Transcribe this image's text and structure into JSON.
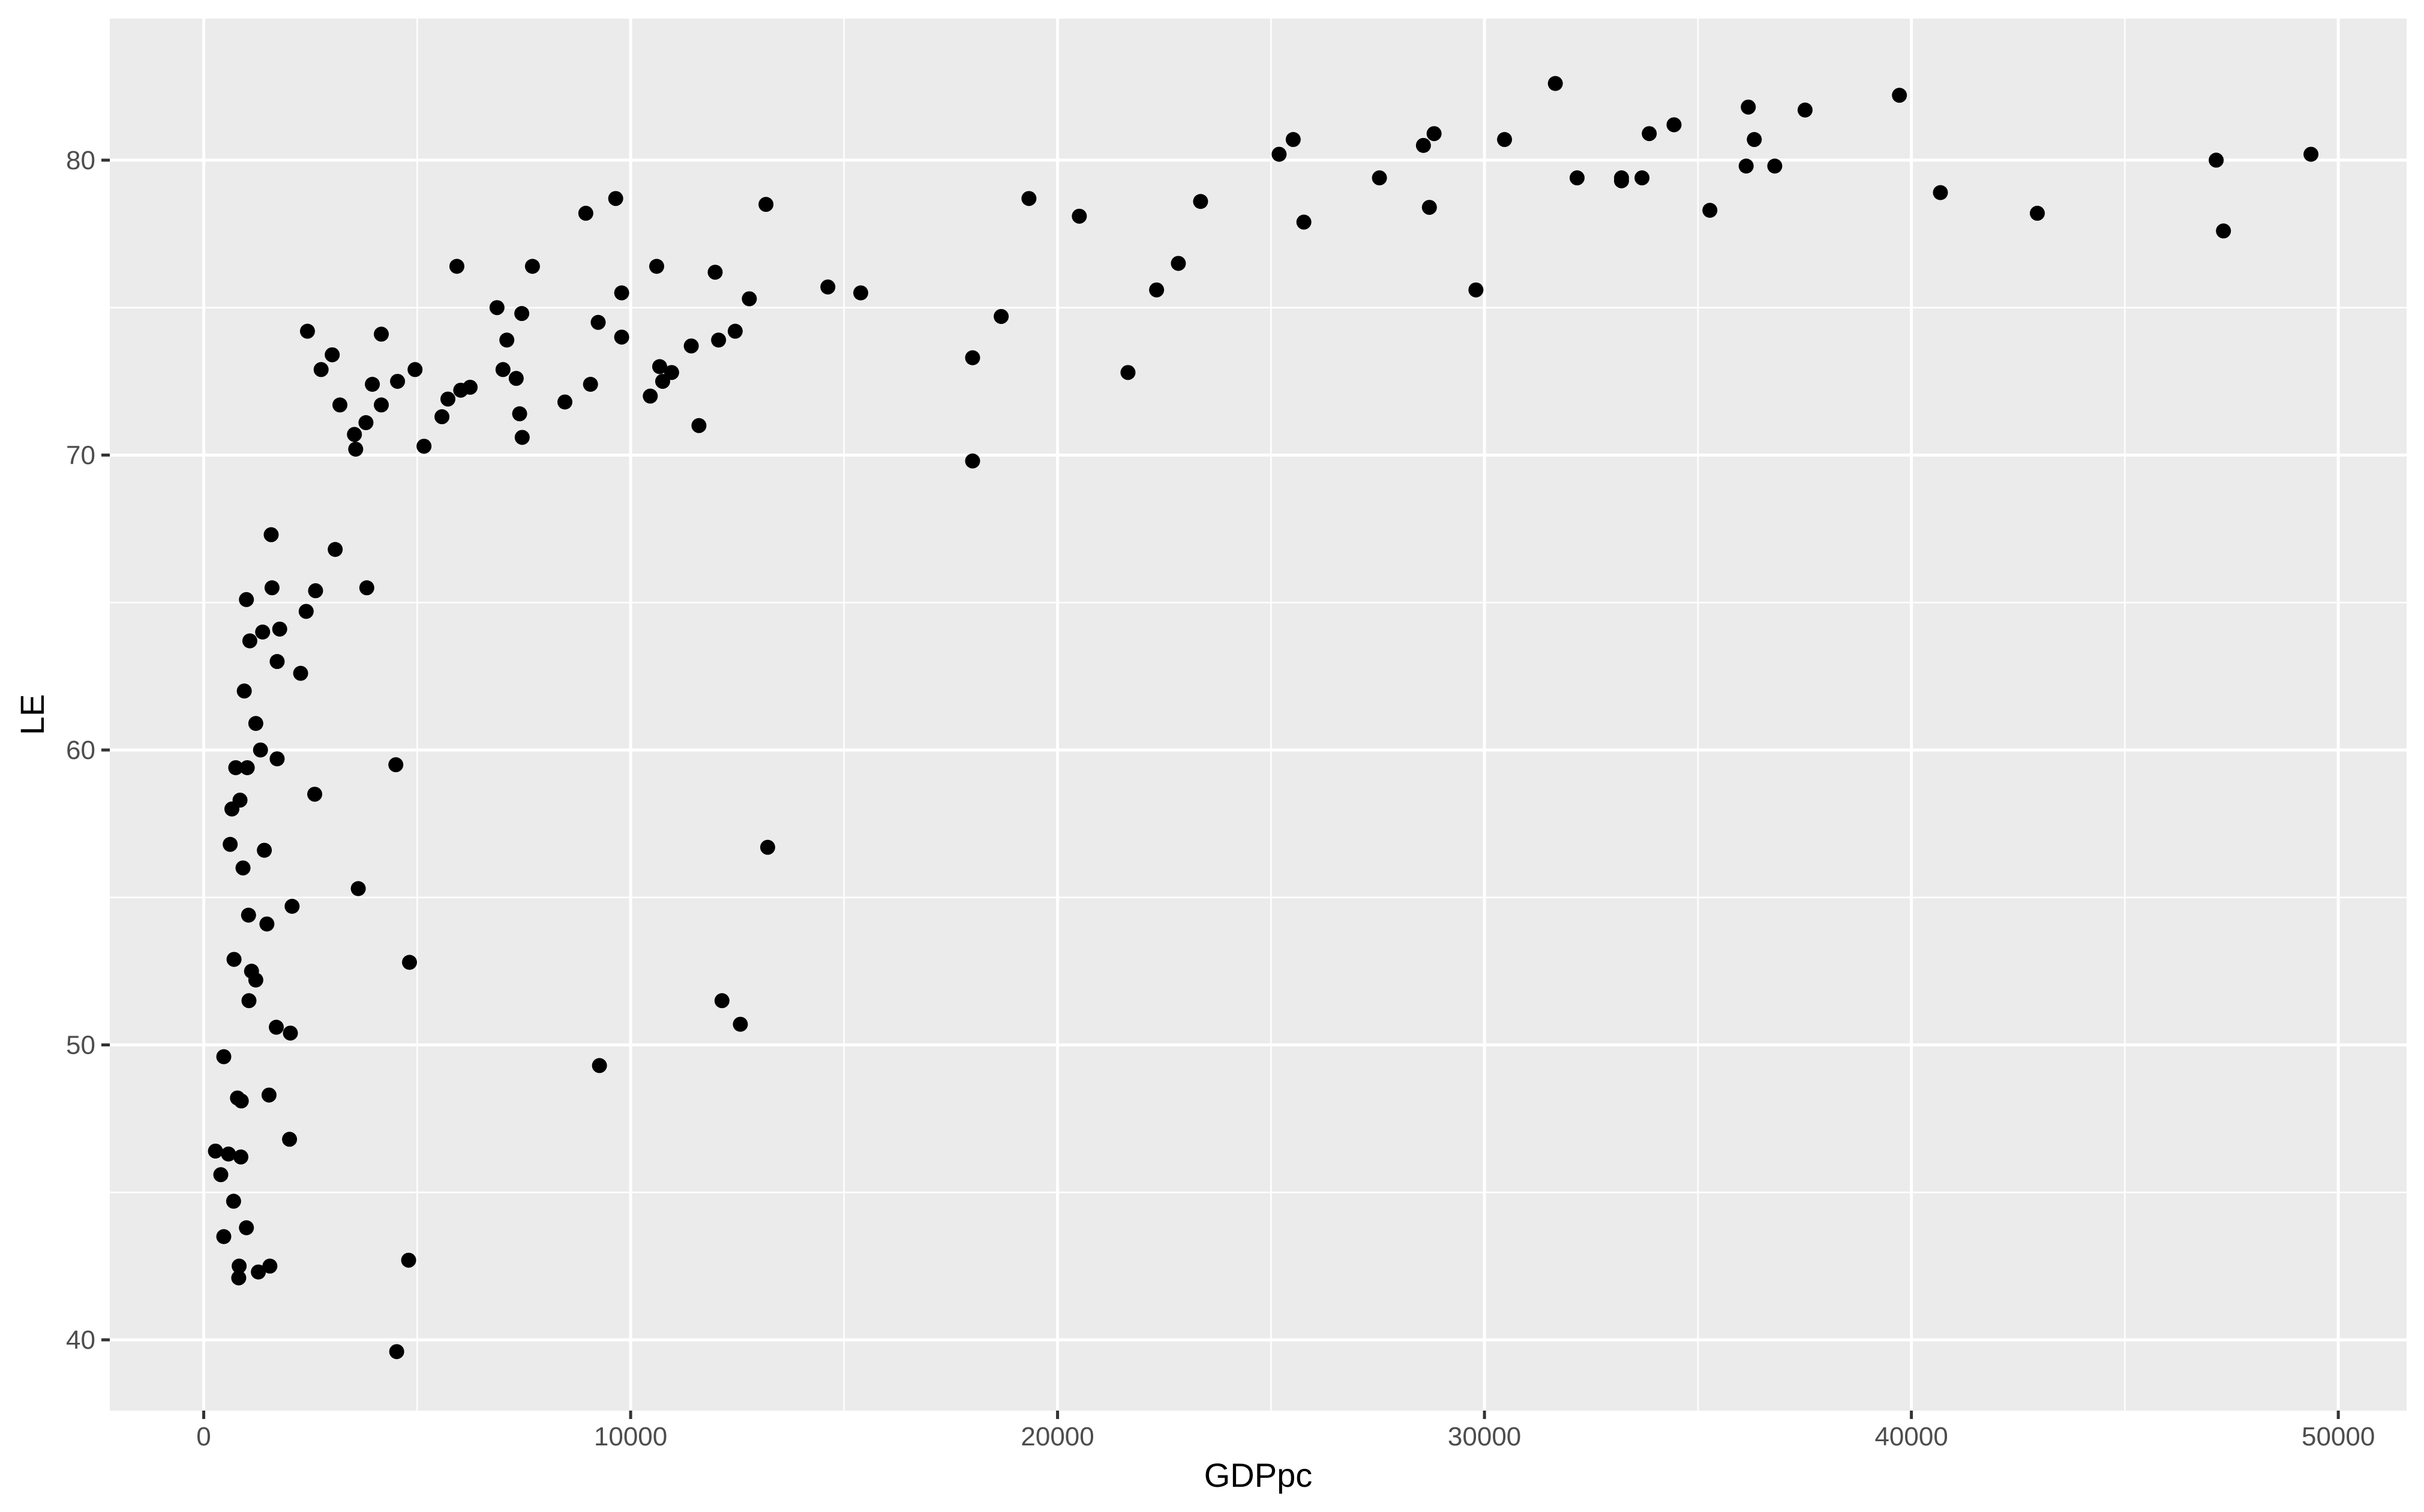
{
  "chart_data": {
    "type": "scatter",
    "title": "",
    "xlabel": "GDPpc",
    "ylabel": "LE",
    "xlim": [
      -2200,
      51600
    ],
    "ylim": [
      37.6,
      84.8
    ],
    "x_ticks": [
      0,
      10000,
      20000,
      30000,
      40000,
      50000
    ],
    "x_tick_labels": [
      "0",
      "10000",
      "20000",
      "30000",
      "40000",
      "50000"
    ],
    "y_ticks": [
      40,
      50,
      60,
      70,
      80
    ],
    "y_tick_labels": [
      "40",
      "50",
      "60",
      "70",
      "80"
    ],
    "grid": true,
    "legend": "none",
    "colors": {
      "panel_background": "#ebebeb",
      "grid_major": "#ffffff",
      "point": "#000000",
      "tick_label": "#4d4d4d",
      "tick_mark": "#333333"
    },
    "points": [
      {
        "x": 275,
        "y": 46.4
      },
      {
        "x": 400,
        "y": 45.6
      },
      {
        "x": 470,
        "y": 49.6
      },
      {
        "x": 470,
        "y": 43.5
      },
      {
        "x": 580,
        "y": 46.3
      },
      {
        "x": 620,
        "y": 56.8
      },
      {
        "x": 660,
        "y": 58.0
      },
      {
        "x": 700,
        "y": 44.7
      },
      {
        "x": 710,
        "y": 52.9
      },
      {
        "x": 750,
        "y": 59.4
      },
      {
        "x": 790,
        "y": 48.2
      },
      {
        "x": 820,
        "y": 42.1
      },
      {
        "x": 830,
        "y": 42.5
      },
      {
        "x": 850,
        "y": 58.3
      },
      {
        "x": 870,
        "y": 46.2
      },
      {
        "x": 880,
        "y": 48.1
      },
      {
        "x": 920,
        "y": 56.0
      },
      {
        "x": 950,
        "y": 62.0
      },
      {
        "x": 1000,
        "y": 65.1
      },
      {
        "x": 1000,
        "y": 43.8
      },
      {
        "x": 1020,
        "y": 59.4
      },
      {
        "x": 1050,
        "y": 54.4
      },
      {
        "x": 1060,
        "y": 51.5
      },
      {
        "x": 1080,
        "y": 63.7
      },
      {
        "x": 1120,
        "y": 52.5
      },
      {
        "x": 1220,
        "y": 52.2
      },
      {
        "x": 1220,
        "y": 60.9
      },
      {
        "x": 1280,
        "y": 42.3
      },
      {
        "x": 1330,
        "y": 60.0
      },
      {
        "x": 1380,
        "y": 64.0
      },
      {
        "x": 1420,
        "y": 56.6
      },
      {
        "x": 1480,
        "y": 54.1
      },
      {
        "x": 1530,
        "y": 48.3
      },
      {
        "x": 1550,
        "y": 42.5
      },
      {
        "x": 1580,
        "y": 67.3
      },
      {
        "x": 1600,
        "y": 65.5
      },
      {
        "x": 1700,
        "y": 50.6
      },
      {
        "x": 1720,
        "y": 63.0
      },
      {
        "x": 1720,
        "y": 59.7
      },
      {
        "x": 1780,
        "y": 64.1
      },
      {
        "x": 2010,
        "y": 46.8
      },
      {
        "x": 2030,
        "y": 50.4
      },
      {
        "x": 2070,
        "y": 54.7
      },
      {
        "x": 2270,
        "y": 62.6
      },
      {
        "x": 2400,
        "y": 64.7
      },
      {
        "x": 2430,
        "y": 74.2
      },
      {
        "x": 2600,
        "y": 58.5
      },
      {
        "x": 2620,
        "y": 65.4
      },
      {
        "x": 2750,
        "y": 72.9
      },
      {
        "x": 3010,
        "y": 73.4
      },
      {
        "x": 3080,
        "y": 66.8
      },
      {
        "x": 3190,
        "y": 71.7
      },
      {
        "x": 3530,
        "y": 70.7
      },
      {
        "x": 3560,
        "y": 70.2
      },
      {
        "x": 3620,
        "y": 55.3
      },
      {
        "x": 3800,
        "y": 71.1
      },
      {
        "x": 3820,
        "y": 65.5
      },
      {
        "x": 3950,
        "y": 72.4
      },
      {
        "x": 4160,
        "y": 71.7
      },
      {
        "x": 4160,
        "y": 74.1
      },
      {
        "x": 4500,
        "y": 59.5
      },
      {
        "x": 4520,
        "y": 39.6
      },
      {
        "x": 4540,
        "y": 72.5
      },
      {
        "x": 4800,
        "y": 42.7
      },
      {
        "x": 4820,
        "y": 52.8
      },
      {
        "x": 4950,
        "y": 72.9
      },
      {
        "x": 5160,
        "y": 70.3
      },
      {
        "x": 5580,
        "y": 71.3
      },
      {
        "x": 5720,
        "y": 71.9
      },
      {
        "x": 5930,
        "y": 76.4
      },
      {
        "x": 6020,
        "y": 72.2
      },
      {
        "x": 6240,
        "y": 72.3
      },
      {
        "x": 6870,
        "y": 75.0
      },
      {
        "x": 7010,
        "y": 72.9
      },
      {
        "x": 7100,
        "y": 73.9
      },
      {
        "x": 7320,
        "y": 72.6
      },
      {
        "x": 7400,
        "y": 71.4
      },
      {
        "x": 7450,
        "y": 74.8
      },
      {
        "x": 7460,
        "y": 70.6
      },
      {
        "x": 7700,
        "y": 76.4
      },
      {
        "x": 8460,
        "y": 71.8
      },
      {
        "x": 8950,
        "y": 78.2
      },
      {
        "x": 9060,
        "y": 72.4
      },
      {
        "x": 9240,
        "y": 74.5
      },
      {
        "x": 9270,
        "y": 49.3
      },
      {
        "x": 9650,
        "y": 78.7
      },
      {
        "x": 9790,
        "y": 74.0
      },
      {
        "x": 9790,
        "y": 75.5
      },
      {
        "x": 10460,
        "y": 72.0
      },
      {
        "x": 10610,
        "y": 76.4
      },
      {
        "x": 10680,
        "y": 73.0
      },
      {
        "x": 10750,
        "y": 72.5
      },
      {
        "x": 10960,
        "y": 72.8
      },
      {
        "x": 11420,
        "y": 73.7
      },
      {
        "x": 11600,
        "y": 71.0
      },
      {
        "x": 11980,
        "y": 76.2
      },
      {
        "x": 12060,
        "y": 73.9
      },
      {
        "x": 12140,
        "y": 51.5
      },
      {
        "x": 12450,
        "y": 74.2
      },
      {
        "x": 12570,
        "y": 50.7
      },
      {
        "x": 12780,
        "y": 75.3
      },
      {
        "x": 13170,
        "y": 78.5
      },
      {
        "x": 13210,
        "y": 56.7
      },
      {
        "x": 14620,
        "y": 75.7
      },
      {
        "x": 15390,
        "y": 75.5
      },
      {
        "x": 18010,
        "y": 73.3
      },
      {
        "x": 18010,
        "y": 69.8
      },
      {
        "x": 18680,
        "y": 74.7
      },
      {
        "x": 19330,
        "y": 78.7
      },
      {
        "x": 20510,
        "y": 78.1
      },
      {
        "x": 21650,
        "y": 72.8
      },
      {
        "x": 22320,
        "y": 75.6
      },
      {
        "x": 22830,
        "y": 76.5
      },
      {
        "x": 23350,
        "y": 78.6
      },
      {
        "x": 25190,
        "y": 80.2
      },
      {
        "x": 25520,
        "y": 80.7
      },
      {
        "x": 25770,
        "y": 77.9
      },
      {
        "x": 27540,
        "y": 79.4
      },
      {
        "x": 28570,
        "y": 80.5
      },
      {
        "x": 28710,
        "y": 78.4
      },
      {
        "x": 28820,
        "y": 80.9
      },
      {
        "x": 29800,
        "y": 75.6
      },
      {
        "x": 30470,
        "y": 80.7
      },
      {
        "x": 31660,
        "y": 82.6
      },
      {
        "x": 32170,
        "y": 79.4
      },
      {
        "x": 33210,
        "y": 79.3
      },
      {
        "x": 33210,
        "y": 79.4
      },
      {
        "x": 33690,
        "y": 79.4
      },
      {
        "x": 33860,
        "y": 80.9
      },
      {
        "x": 34440,
        "y": 81.2
      },
      {
        "x": 35280,
        "y": 78.3
      },
      {
        "x": 36130,
        "y": 79.8
      },
      {
        "x": 36180,
        "y": 81.8
      },
      {
        "x": 36320,
        "y": 80.7
      },
      {
        "x": 36800,
        "y": 79.8
      },
      {
        "x": 37510,
        "y": 81.7
      },
      {
        "x": 39720,
        "y": 82.2
      },
      {
        "x": 40680,
        "y": 78.9
      },
      {
        "x": 42950,
        "y": 78.2
      },
      {
        "x": 47140,
        "y": 80.0
      },
      {
        "x": 47310,
        "y": 77.6
      },
      {
        "x": 49360,
        "y": 80.2
      }
    ]
  }
}
